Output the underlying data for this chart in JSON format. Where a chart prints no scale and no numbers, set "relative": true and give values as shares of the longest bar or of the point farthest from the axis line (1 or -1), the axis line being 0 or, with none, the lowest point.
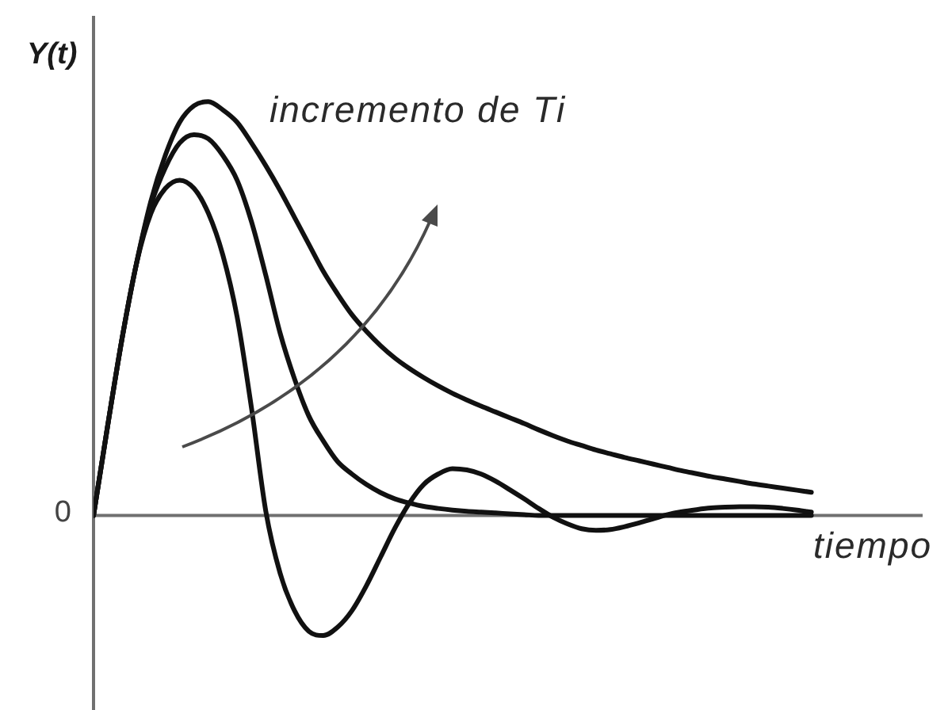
{
  "chart_data": {
    "type": "line",
    "relative": true,
    "ylabel": "Y(t)",
    "xlabel": "tiempo",
    "marker": "none",
    "line_style": "solid",
    "annotations": [
      "0",
      "incremento de Ti"
    ],
    "categories": [
      null,
      null,
      null,
      null,
      null,
      null,
      null,
      null,
      null,
      null,
      null,
      null,
      null,
      null,
      null,
      null,
      null,
      null,
      null,
      null,
      null,
      null,
      null,
      null,
      null,
      null,
      null,
      null,
      null,
      null,
      null,
      null,
      null,
      null,
      null,
      null,
      null,
      null,
      null,
      null,
      null,
      null,
      null,
      null,
      null,
      null,
      null,
      null,
      null,
      null,
      null
    ],
    "series": [
      {
        "color": "#111111",
        "values": [
          0,
          0.22,
          0.43,
          0.61,
          0.76,
          0.87,
          0.95,
          0.99,
          1,
          0.98,
          0.95,
          0.9,
          0.845,
          0.785,
          0.72,
          0.655,
          0.59,
          0.535,
          0.485,
          0.445,
          0.41,
          0.38,
          0.355,
          0.333,
          0.313,
          0.295,
          0.279,
          0.264,
          0.25,
          0.236,
          0.222,
          0.207,
          0.193,
          0.18,
          0.169,
          0.158,
          0.149,
          0.14,
          0.132,
          0.124,
          0.116,
          0.108,
          0.101,
          0.094,
          0.088,
          0.082,
          0.076,
          0.071,
          0.066,
          0.061,
          0.056
        ]
      },
      {
        "color": "#111111",
        "values": [
          0,
          0.22,
          0.43,
          0.61,
          0.75,
          0.84,
          0.9,
          0.92,
          0.91,
          0.87,
          0.81,
          0.71,
          0.58,
          0.44,
          0.33,
          0.24,
          0.18,
          0.13,
          0.1,
          0.075,
          0.055,
          0.04,
          0.03,
          0.022,
          0.017,
          0.013,
          0.01,
          0.008,
          0.006,
          0.004,
          0.002,
          0,
          0,
          0,
          0,
          0,
          0,
          0,
          0,
          0,
          0,
          0,
          0,
          0,
          0,
          0,
          0,
          0,
          0,
          0,
          0
        ]
      },
      {
        "color": "#111111",
        "values": [
          0,
          0.22,
          0.43,
          0.61,
          0.73,
          0.79,
          0.81,
          0.79,
          0.73,
          0.63,
          0.48,
          0.26,
          0.01,
          -0.14,
          -0.23,
          -0.28,
          -0.29,
          -0.27,
          -0.23,
          -0.17,
          -0.1,
          -0.03,
          0.03,
          0.075,
          0.1,
          0.113,
          0.11,
          0.1,
          0.083,
          0.062,
          0.04,
          0.017,
          -0.004,
          -0.02,
          -0.032,
          -0.036,
          -0.034,
          -0.027,
          -0.018,
          -0.008,
          0.002,
          0.009,
          0.014,
          0.018,
          0.02,
          0.021,
          0.021,
          0.02,
          0.017,
          0.013,
          0.008
        ]
      }
    ]
  }
}
